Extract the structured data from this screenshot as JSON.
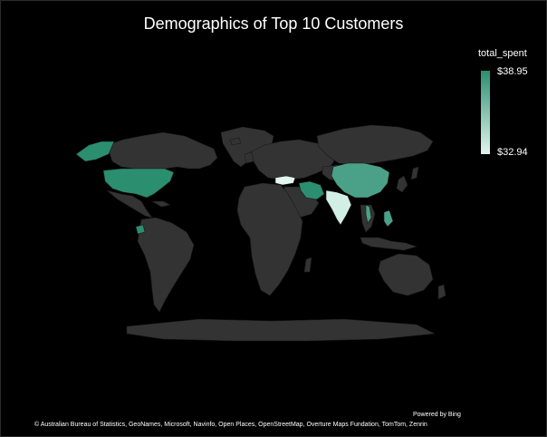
{
  "title": "Demographics of Top 10 Customers",
  "legend": {
    "title": "total_spent",
    "max_label": "$38.95",
    "min_label": "$32.94",
    "color_high": "#2b8e6f",
    "color_low": "#e2f5ee"
  },
  "colors": {
    "background": "#000000",
    "land": "#333333",
    "border": "#1a1a1a"
  },
  "highlighted_countries": [
    {
      "name": "United States",
      "level": "high"
    },
    {
      "name": "China",
      "level": "mid"
    },
    {
      "name": "Iran",
      "level": "high"
    },
    {
      "name": "India",
      "level": "low"
    },
    {
      "name": "Turkey",
      "level": "low"
    },
    {
      "name": "Ecuador",
      "level": "high"
    },
    {
      "name": "Philippines",
      "level": "mid"
    },
    {
      "name": "Vietnam",
      "level": "mid"
    }
  ],
  "footer": {
    "powered_by": "Powered by Bing",
    "credits": "© Australian Bureau of Statistics, GeoNames, Microsoft, Navinfo, Open Places, OpenStreetMap, Overture Maps Fundation, TomTom, Zenrin"
  }
}
